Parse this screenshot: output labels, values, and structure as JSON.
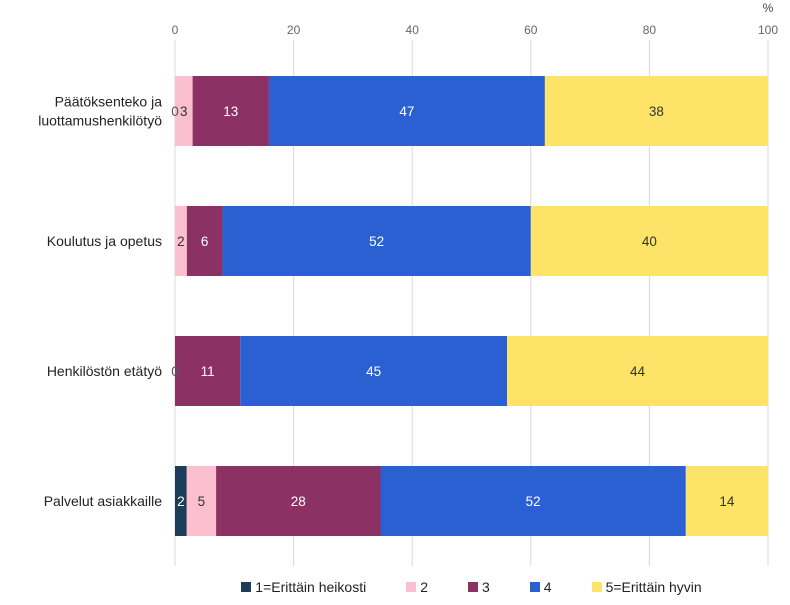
{
  "chart_data": {
    "type": "bar",
    "orientation": "horizontal",
    "stacked": "percent",
    "unit": "%",
    "xaxis_position": "top",
    "xlim": [
      0,
      100
    ],
    "xticks": [
      0,
      20,
      40,
      60,
      80,
      100
    ],
    "grid": true,
    "legend": "bottom",
    "categories": [
      "Päätöksenteko ja luottamushenkilötyö",
      "Koulutus ja opetus",
      "Henkilöstön etätyö",
      "Palvelut asiakkaille"
    ],
    "series": [
      {
        "name": "1=Erittäin heikosti",
        "color": "#1c3d5a",
        "values": [
          0,
          null,
          0,
          2
        ]
      },
      {
        "name": "2",
        "color": "#fbbfd0",
        "values": [
          3,
          2,
          null,
          5
        ]
      },
      {
        "name": "3",
        "color": "#8c3163",
        "values": [
          13,
          6,
          11,
          28
        ]
      },
      {
        "name": "4",
        "color": "#2b60d3",
        "values": [
          47,
          52,
          45,
          52
        ]
      },
      {
        "name": "5=Erittäin hyvin",
        "color": "#fde468",
        "values": [
          38,
          40,
          44,
          14
        ]
      }
    ]
  }
}
